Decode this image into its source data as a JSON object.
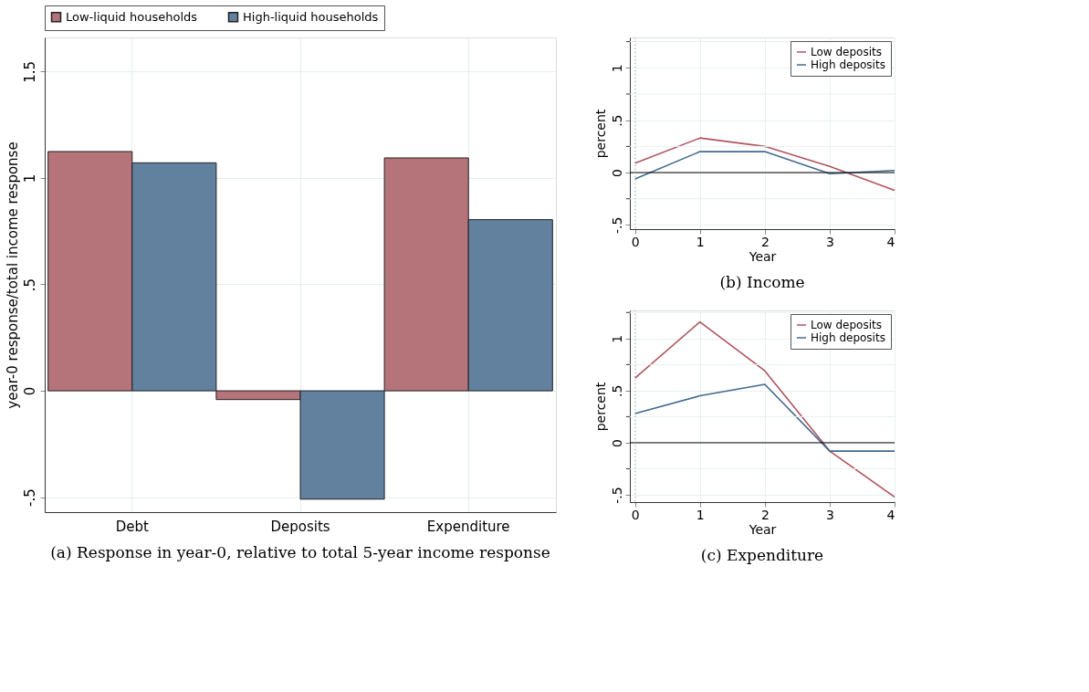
{
  "chart_data": [
    {
      "type": "bar",
      "title": "(a) Response in year-0, relative to total 5-year income response",
      "ylabel": "year-0 response/total income response",
      "categories": [
        "Debt",
        "Deposits",
        "Expenditure"
      ],
      "series": [
        {
          "name": "Low-liquid households",
          "color": "#b5737a",
          "values": [
            1.124,
            -0.041,
            1.094
          ]
        },
        {
          "name": "High-liquid households",
          "color": "#61819f",
          "values": [
            1.071,
            -0.509,
            0.804
          ]
        }
      ],
      "ylim": [
        -0.57,
        1.66
      ],
      "yticks": [
        {
          "value": -0.5,
          "label": "-.5"
        },
        0,
        {
          "value": 0.5,
          "label": ".5"
        },
        1,
        1.5
      ],
      "grid": true,
      "legend": "top"
    },
    {
      "type": "line",
      "title": "(b) Income",
      "xlabel": "Year",
      "ylabel": "percent",
      "x": [
        0,
        1,
        2,
        3,
        4
      ],
      "series": [
        {
          "name": "Low deposits",
          "color": "#b0545f",
          "values": [
            0.09,
            0.33,
            0.25,
            0.06,
            -0.17
          ]
        },
        {
          "name": "High deposits",
          "color": "#43698f",
          "values": [
            -0.06,
            0.2,
            0.2,
            -0.01,
            0.02
          ]
        }
      ],
      "xlim": [
        -0.08,
        4
      ],
      "xticks": [
        0,
        1,
        2,
        3,
        4
      ],
      "ylim": [
        -0.54,
        1.29
      ],
      "yticks": [
        {
          "value": -0.5,
          "label": "-.5"
        },
        {
          "value": -0.25,
          "label": null
        },
        0,
        {
          "value": 0.25,
          "label": null
        },
        {
          "value": 0.5,
          "label": ".5"
        },
        {
          "value": 0.75,
          "label": null
        },
        1,
        {
          "value": 1.25,
          "label": null
        }
      ],
      "ref_lines": [
        {
          "axis": "y",
          "value": 0,
          "color": "#000000",
          "line_style": "solid"
        },
        {
          "axis": "x",
          "value": 0,
          "color": "#9aa9b0",
          "line_style": "dotted"
        }
      ],
      "grid": true,
      "legend": "top right"
    },
    {
      "type": "line",
      "title": "(c) Expenditure",
      "xlabel": "Year",
      "ylabel": "percent",
      "x": [
        0,
        1,
        2,
        3,
        4
      ],
      "series": [
        {
          "name": "Low deposits",
          "color": "#b0545f",
          "values": [
            0.62,
            1.16,
            0.69,
            -0.08,
            -0.52
          ]
        },
        {
          "name": "High deposits",
          "color": "#43698f",
          "values": [
            0.28,
            0.45,
            0.56,
            -0.08,
            -0.08
          ]
        }
      ],
      "xlim": [
        -0.08,
        4
      ],
      "xticks": [
        0,
        1,
        2,
        3,
        4
      ],
      "ylim": [
        -0.57,
        1.27
      ],
      "yticks": [
        {
          "value": -0.5,
          "label": "-.5"
        },
        {
          "value": -0.25,
          "label": null
        },
        0,
        {
          "value": 0.25,
          "label": null
        },
        {
          "value": 0.5,
          "label": ".5"
        },
        {
          "value": 0.75,
          "label": null
        },
        1,
        {
          "value": 1.25,
          "label": null
        }
      ],
      "ref_lines": [
        {
          "axis": "y",
          "value": 0,
          "color": "#000000",
          "line_style": "solid"
        },
        {
          "axis": "x",
          "value": 0,
          "color": "#9aa9b0",
          "line_style": "dotted"
        }
      ],
      "grid": true,
      "legend": "top right"
    }
  ]
}
